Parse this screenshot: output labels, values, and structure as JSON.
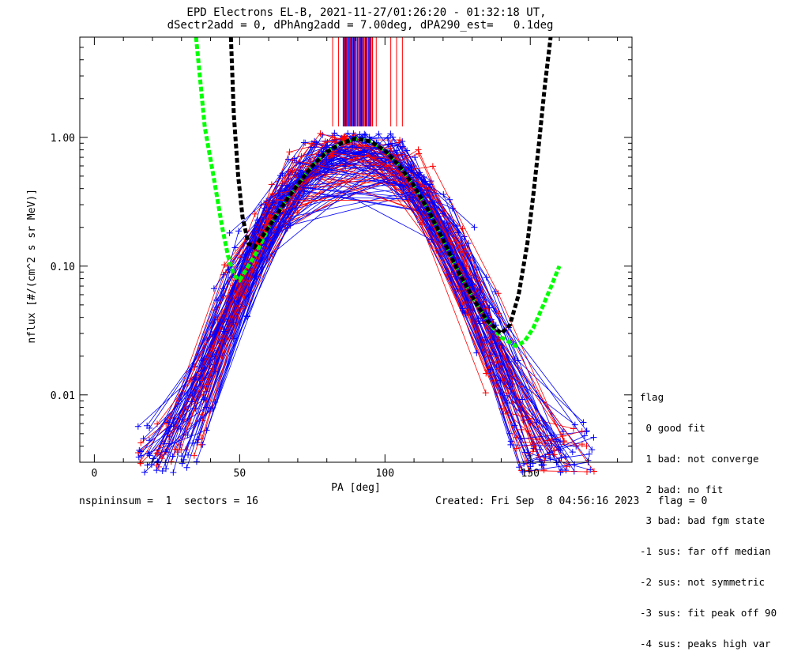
{
  "chart_data": {
    "type": "line",
    "title": "EPD Electrons EL-B, 2021-11-27/01:26:20 - 01:32:18 UT,",
    "subtitle": "dSectr2add = 0, dPhAng2add = 7.00deg, dPA290_est=   0.1deg",
    "xlabel": "PA [deg]",
    "ylabel": "nflux [#/(cm^2 s sr MeV)]",
    "xlim": [
      -5,
      185
    ],
    "ylim": [
      0.003,
      6
    ],
    "yscale": "log",
    "xticks": [
      "0",
      "50",
      "100",
      "150"
    ],
    "yticks": [
      "0.01",
      "0.10",
      "1.00"
    ],
    "series": [
      {
        "color": "#00ff00",
        "style": "dashed",
        "x": [
          35,
          38,
          41,
          44,
          46,
          48,
          50,
          53,
          56,
          60,
          65,
          70,
          75,
          80,
          85,
          90,
          95,
          100,
          105,
          110,
          115,
          120,
          125,
          130,
          135,
          140,
          145,
          148,
          151,
          154,
          157,
          160
        ],
        "y": [
          6,
          1.2,
          0.5,
          0.2,
          0.12,
          0.085,
          0.078,
          0.1,
          0.13,
          0.2,
          0.3,
          0.43,
          0.6,
          0.77,
          0.9,
          0.98,
          0.93,
          0.79,
          0.6,
          0.42,
          0.27,
          0.16,
          0.093,
          0.058,
          0.038,
          0.028,
          0.024,
          0.026,
          0.033,
          0.047,
          0.068,
          0.1
        ]
      },
      {
        "color": "#000000",
        "style": "dashed",
        "x": [
          47,
          48,
          49.5,
          51,
          53,
          55,
          57,
          60,
          65,
          70,
          75,
          80,
          85,
          90,
          95,
          100,
          105,
          110,
          115,
          120,
          125,
          130,
          135,
          140,
          143,
          146,
          149,
          151,
          153,
          155,
          157
        ],
        "y": [
          6,
          1.5,
          0.5,
          0.24,
          0.15,
          0.14,
          0.16,
          0.2,
          0.3,
          0.43,
          0.6,
          0.77,
          0.9,
          0.98,
          0.93,
          0.79,
          0.6,
          0.42,
          0.27,
          0.16,
          0.093,
          0.058,
          0.038,
          0.03,
          0.035,
          0.06,
          0.15,
          0.35,
          0.9,
          2.5,
          6
        ]
      }
    ],
    "peak": {
      "x": 86,
      "y": 0.98
    },
    "grid": false,
    "legend_position": "right"
  },
  "legend": {
    "title": "flag",
    "items": [
      " 0 good fit",
      " 1 bad: not converge",
      " 2 bad: no fit",
      " 3 bad: bad fgm state",
      "-1 sus: far off median",
      "-2 sus: not symmetric",
      "-3 sus: fit peak off 90",
      "-4 sus: peaks high var"
    ]
  },
  "footer": {
    "left": "nspininsum =  1  sectors = 16",
    "right": "Created: Fri Sep  8 04:56:16 2023   flag = 0"
  }
}
